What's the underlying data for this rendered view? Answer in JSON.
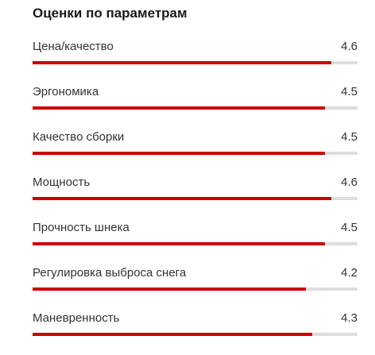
{
  "title": "Оценки по параметрам",
  "max_score": 5,
  "colors": {
    "bar_fill": "#cc0000",
    "bar_track": "#dddddd"
  },
  "ratings": [
    {
      "label": "Цена/качество",
      "value": "4.6"
    },
    {
      "label": "Эргономика",
      "value": "4.5"
    },
    {
      "label": "Качество сборки",
      "value": "4.5"
    },
    {
      "label": "Мощность",
      "value": "4.6"
    },
    {
      "label": "Прочность шнека",
      "value": "4.5"
    },
    {
      "label": "Регулировка выброса снега",
      "value": "4.2"
    },
    {
      "label": "Маневренность",
      "value": "4.3"
    }
  ]
}
